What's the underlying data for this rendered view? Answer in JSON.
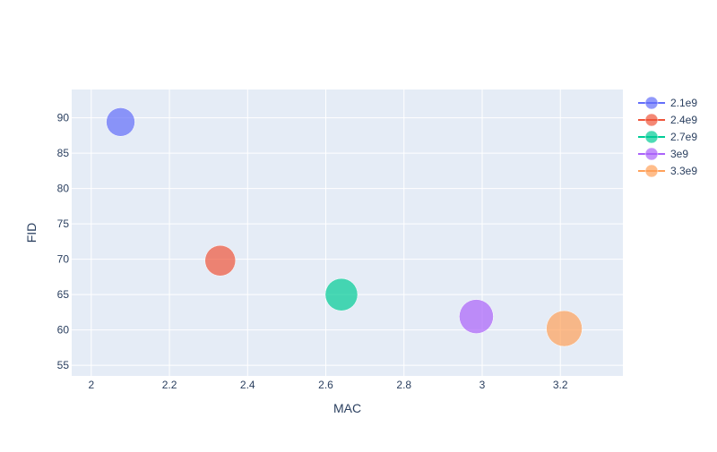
{
  "chart_data": {
    "type": "scatter",
    "title": "",
    "xlabel": "MAC",
    "ylabel": "FID",
    "xlim": [
      1.95,
      3.36
    ],
    "ylim": [
      53.5,
      94.0
    ],
    "x_ticks": [
      2,
      2.2,
      2.4,
      2.6,
      2.8,
      3,
      3.2
    ],
    "x_tick_labels": [
      "2",
      "2.2",
      "2.4",
      "2.6",
      "2.8",
      "3",
      "3.2"
    ],
    "y_ticks": [
      55,
      60,
      65,
      70,
      75,
      80,
      85,
      90
    ],
    "y_tick_labels": [
      "55",
      "60",
      "65",
      "70",
      "75",
      "80",
      "85",
      "90"
    ],
    "grid": true,
    "legend_placement": "top-right",
    "plot_background": "#E5ECF6",
    "series": [
      {
        "name": "2.1e9",
        "color": "#636EFA",
        "points": [
          {
            "x": 2.075,
            "y": 89.4,
            "size": 2.1
          }
        ]
      },
      {
        "name": "2.4e9",
        "color": "#EF553B",
        "points": [
          {
            "x": 2.33,
            "y": 69.8,
            "size": 2.4
          }
        ]
      },
      {
        "name": "2.7e9",
        "color": "#00CC96",
        "points": [
          {
            "x": 2.64,
            "y": 65.0,
            "size": 2.7
          }
        ]
      },
      {
        "name": "3e9",
        "color": "#AB63FA",
        "points": [
          {
            "x": 2.985,
            "y": 61.9,
            "size": 3.0
          }
        ]
      },
      {
        "name": "3.3e9",
        "color": "#FFA15A",
        "points": [
          {
            "x": 3.21,
            "y": 60.2,
            "size": 3.3
          }
        ]
      }
    ]
  }
}
